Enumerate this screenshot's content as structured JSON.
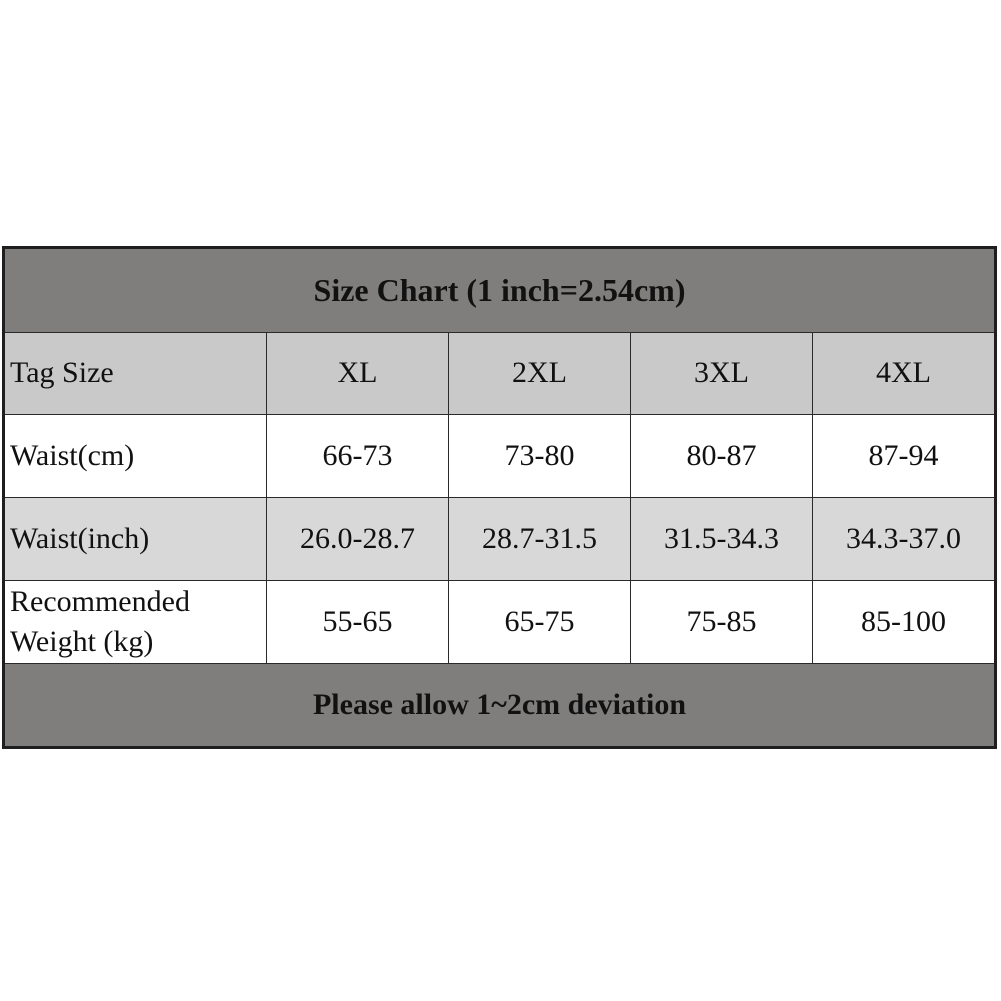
{
  "header": {
    "title": "Size Chart (1 inch=2.54cm)"
  },
  "table": {
    "columns": [
      "Tag Size",
      "XL",
      "2XL",
      "3XL",
      "4XL"
    ],
    "rows": [
      [
        "Waist(cm)",
        "66-73",
        "73-80",
        "80-87",
        "87-94"
      ],
      [
        "Waist(inch)",
        "26.0-28.7",
        "28.7-31.5",
        "31.5-34.3",
        "34.3-37.0"
      ],
      [
        "Recommended\nWeight (kg)",
        "55-65",
        "65-75",
        "75-85",
        "85-100"
      ]
    ]
  },
  "footer": {
    "note": "Please allow 1~2cm deviation"
  }
}
